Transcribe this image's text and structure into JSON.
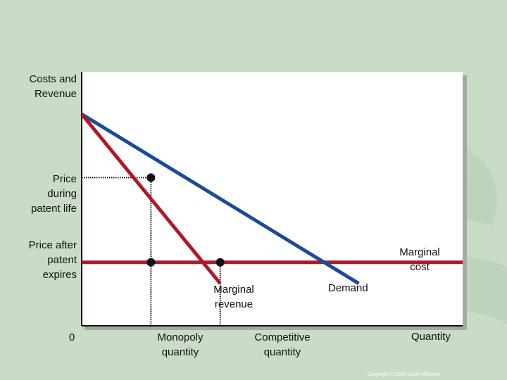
{
  "chart": {
    "ylabel_line1": "Costs and",
    "ylabel_line2": "Revenue",
    "xlabel": "Quantity",
    "origin": "0",
    "price_patent_line1": "Price",
    "price_patent_line2": "during",
    "price_patent_line3": "patent life",
    "price_after_line1": "Price after",
    "price_after_line2": "patent",
    "price_after_line3": "expires",
    "monopoly_qty_line1": "Monopoly",
    "monopoly_qty_line2": "quantity",
    "competitive_qty_line1": "Competitive",
    "competitive_qty_line2": "quantity",
    "mc_line1": "Marginal",
    "mc_line2": "cost",
    "mr_line1": "Marginal",
    "mr_line2": "revenue",
    "demand_label": "Demand"
  },
  "footer": {
    "copyright": "Copyright © 2004 South-Western"
  },
  "chart_data": {
    "type": "line",
    "series": [
      {
        "name": "Demand",
        "points": [
          [
            0,
            10
          ],
          [
            8,
            2
          ]
        ]
      },
      {
        "name": "Marginal revenue",
        "points": [
          [
            0,
            10
          ],
          [
            4,
            2
          ]
        ]
      },
      {
        "name": "Marginal cost",
        "points": [
          [
            0,
            3
          ],
          [
            11,
            3
          ]
        ]
      }
    ],
    "xlim": [
      0,
      11
    ],
    "ylim": [
      0,
      12
    ],
    "markers": [
      {
        "x": 2,
        "y": 7
      },
      {
        "x": 2,
        "y": 3
      },
      {
        "x": 4,
        "y": 3
      }
    ],
    "colors": {
      "demand": "#1a4a9a",
      "marginal_revenue": "#b0182a",
      "marginal_cost": "#b0182a"
    }
  }
}
